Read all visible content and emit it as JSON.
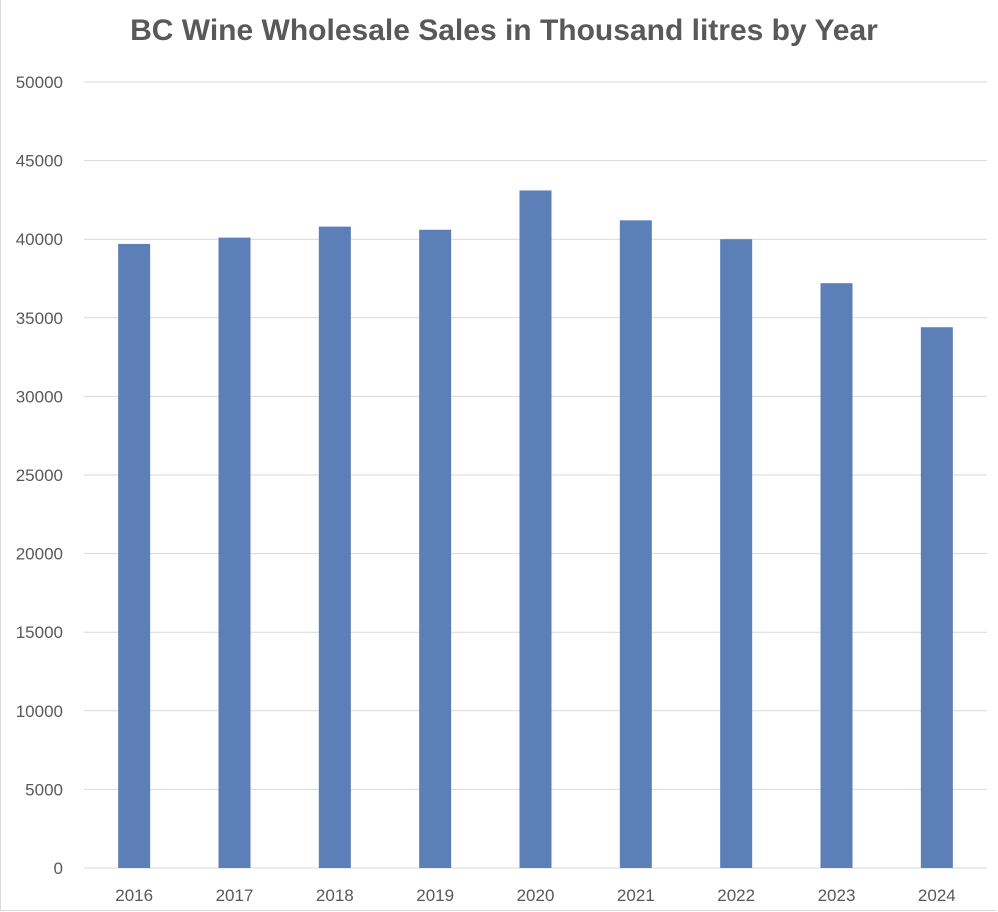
{
  "chart_data": {
    "type": "bar",
    "title": "BC Wine Wholesale Sales in Thousand litres by Year",
    "xlabel": "",
    "ylabel": "",
    "categories": [
      "2016",
      "2017",
      "2018",
      "2019",
      "2020",
      "2021",
      "2022",
      "2023",
      "2024"
    ],
    "series": [
      {
        "values": [
          39700,
          40100,
          40800,
          40600,
          43100,
          41200,
          40000,
          37200,
          34400
        ]
      }
    ],
    "ylim": [
      0,
      50000
    ],
    "yticks": [
      "0",
      "5000",
      "10000",
      "15000",
      "20000",
      "25000",
      "30000",
      "35000",
      "40000",
      "45000",
      "50000"
    ],
    "grid": true,
    "legend": "none",
    "colors": {
      "bar": "#5b7fb6",
      "grid": "#d9d9d9",
      "text": "#595959"
    }
  }
}
